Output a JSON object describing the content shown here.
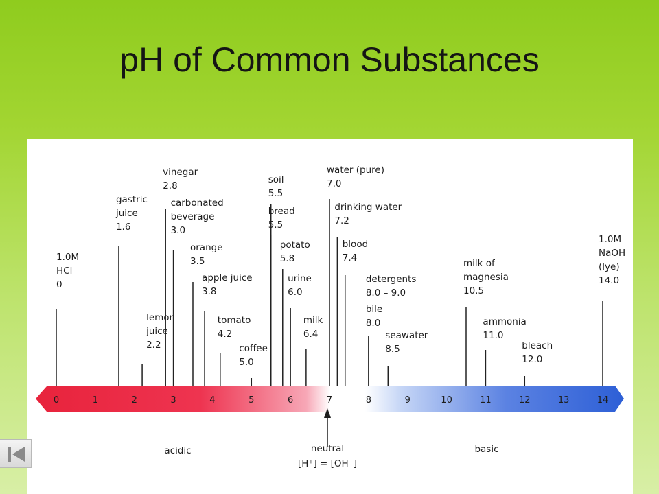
{
  "title": "pH of Common Substances",
  "colors": {
    "acid_red": "#e8233c",
    "base_blue": "#2d5fd6",
    "background_green": "#9fd42c"
  },
  "scale": {
    "ticks": [
      "0",
      "1",
      "2",
      "3",
      "4",
      "5",
      "6",
      "7",
      "8",
      "9",
      "10",
      "11",
      "12",
      "13",
      "14"
    ],
    "acidic_label": "acidic",
    "basic_label": "basic",
    "neutral_label": "neutral",
    "neutral_formula": "[H⁺] = [OH⁻]"
  },
  "nav": {
    "back_icon": "skip-back-icon"
  },
  "chart_data": {
    "type": "scale",
    "title": "pH of Common Substances",
    "x_range": [
      0,
      14
    ],
    "substances": [
      {
        "label": [
          "1.0M",
          "HCl",
          "0"
        ],
        "ph": 0
      },
      {
        "label": [
          "gastric",
          "juice",
          "1.6"
        ],
        "ph": 1.6
      },
      {
        "label": [
          "lemon",
          "juice",
          "2.2"
        ],
        "ph": 2.2
      },
      {
        "label": [
          "vinegar",
          "2.8"
        ],
        "ph": 2.8
      },
      {
        "label": [
          "carbonated",
          "beverage",
          "3.0"
        ],
        "ph": 3.0
      },
      {
        "label": [
          "orange",
          "3.5"
        ],
        "ph": 3.5
      },
      {
        "label": [
          "apple juice",
          "3.8"
        ],
        "ph": 3.8
      },
      {
        "label": [
          "tomato",
          "4.2"
        ],
        "ph": 4.2
      },
      {
        "label": [
          "coffee",
          "5.0"
        ],
        "ph": 5.0
      },
      {
        "label": [
          "soil",
          "5.5"
        ],
        "ph": 5.5
      },
      {
        "label": [
          "bread",
          "5.5"
        ],
        "ph": 5.5
      },
      {
        "label": [
          "potato",
          "5.8"
        ],
        "ph": 5.8
      },
      {
        "label": [
          "urine",
          "6.0"
        ],
        "ph": 6.0
      },
      {
        "label": [
          "milk",
          "6.4"
        ],
        "ph": 6.4
      },
      {
        "label": [
          "water (pure)",
          "7.0"
        ],
        "ph": 7.0
      },
      {
        "label": [
          "drinking water",
          "7.2"
        ],
        "ph": 7.2
      },
      {
        "label": [
          "blood",
          "7.4"
        ],
        "ph": 7.4
      },
      {
        "label": [
          "detergents",
          "8.0 – 9.0"
        ],
        "ph": 8.0
      },
      {
        "label": [
          "bile",
          "8.0"
        ],
        "ph": 8.0
      },
      {
        "label": [
          "seawater",
          "8.5"
        ],
        "ph": 8.5
      },
      {
        "label": [
          "milk of",
          "magnesia",
          "10.5"
        ],
        "ph": 10.5
      },
      {
        "label": [
          "ammonia",
          "11.0"
        ],
        "ph": 11.0
      },
      {
        "label": [
          "bleach",
          "12.0"
        ],
        "ph": 12.0
      },
      {
        "label": [
          "1.0M",
          "NaOH",
          "(lye)",
          "14.0"
        ],
        "ph": 14.0
      }
    ]
  }
}
